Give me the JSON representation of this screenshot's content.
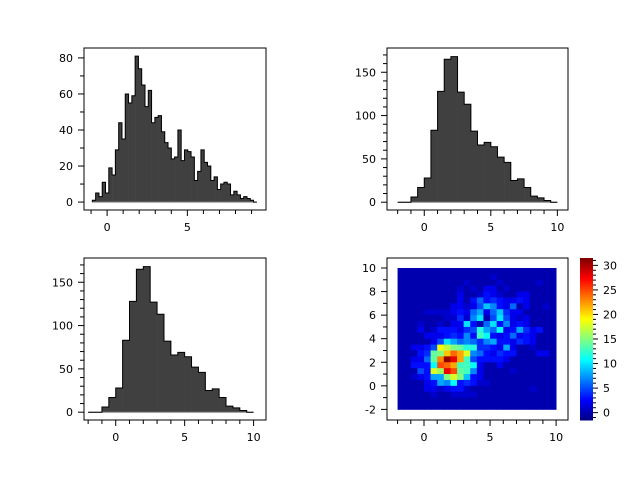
{
  "chart_data": [
    {
      "type": "bar",
      "subtype": "histogram",
      "title": "",
      "xlabel": "",
      "ylabel": "",
      "xlim": [
        -1.44,
        9.9
      ],
      "ylim": [
        -4.4,
        85.5
      ],
      "xticks": [
        0,
        5
      ],
      "xtick_labels": [
        "0",
        "5"
      ],
      "yticks": [
        0,
        20,
        40,
        60,
        80
      ],
      "ytick_labels": [
        "0",
        "20",
        "40",
        "60",
        "80"
      ],
      "bin_start": -0.92,
      "bin_width": 0.205,
      "values": [
        1,
        5,
        3,
        11,
        5,
        19,
        15,
        29,
        44,
        35,
        60,
        55,
        59,
        81,
        74,
        65,
        53,
        62,
        44,
        47,
        48,
        39,
        33,
        30,
        24,
        25,
        40,
        23,
        29,
        28,
        25,
        12,
        17,
        29,
        22,
        20,
        12,
        14,
        7,
        10,
        11,
        10,
        4,
        6,
        4,
        2,
        3,
        2,
        1,
        0
      ],
      "fill_color": "#404040",
      "grid": false
    },
    {
      "type": "bar",
      "subtype": "histogram",
      "title": "",
      "xlabel": "",
      "ylabel": "",
      "xlim": [
        -2.8,
        10.8
      ],
      "ylim": [
        -9,
        178
      ],
      "xticks": [
        0,
        5,
        10
      ],
      "xtick_labels": [
        "0",
        "5",
        "10"
      ],
      "yticks": [
        0,
        50,
        100,
        150
      ],
      "ytick_labels": [
        "0",
        "50",
        "100",
        "150"
      ],
      "bin_start": -2,
      "bin_width": 0.5,
      "values": [
        0,
        0,
        6,
        17,
        28,
        83,
        128,
        165,
        168,
        127,
        113,
        82,
        66,
        69,
        64,
        52,
        46,
        25,
        27,
        17,
        7,
        5,
        2,
        0
      ],
      "fill_color": "#404040",
      "grid": false
    },
    {
      "type": "bar",
      "subtype": "histogram",
      "title": "",
      "xlabel": "",
      "ylabel": "",
      "xlim": [
        -2.3,
        10.9
      ],
      "ylim": [
        -9,
        178
      ],
      "xticks": [
        0,
        5,
        10
      ],
      "xtick_labels": [
        "0",
        "5",
        "10"
      ],
      "yticks": [
        0,
        50,
        100,
        150
      ],
      "ytick_labels": [
        "0",
        "50",
        "100",
        "150"
      ],
      "bin_start": -2,
      "bin_width": 0.5,
      "values": [
        0,
        0,
        6,
        17,
        28,
        83,
        128,
        165,
        168,
        127,
        113,
        82,
        66,
        69,
        64,
        52,
        46,
        25,
        27,
        17,
        7,
        5,
        2,
        0
      ],
      "fill_color": "#404040",
      "grid": false
    },
    {
      "type": "heatmap",
      "title": "",
      "xlabel": "",
      "ylabel": "",
      "xlim": [
        -2.8,
        10.9
      ],
      "ylim": [
        -2.9,
        10.85
      ],
      "x_range": [
        -2,
        10
      ],
      "y_range": [
        -2,
        10
      ],
      "xticks": [
        0,
        5,
        10
      ],
      "xtick_labels": [
        "0",
        "5",
        "10"
      ],
      "yticks": [
        -2,
        0,
        2,
        4,
        6,
        8,
        10
      ],
      "ytick_labels": [
        "-2",
        "0",
        "2",
        "4",
        "6",
        "8",
        "10"
      ],
      "colormap": "jet",
      "clim": [
        -1.5,
        31.5
      ],
      "colorbar_ticks": [
        0,
        5,
        10,
        15,
        20,
        25,
        30
      ],
      "colorbar_tick_labels": [
        "0",
        "5",
        "10",
        "15",
        "20",
        "25",
        "30"
      ],
      "z_rows_top_to_bottom": [
        [
          0,
          0,
          0,
          0,
          0,
          0,
          0,
          0,
          0,
          0,
          0,
          0,
          0,
          0,
          0,
          0,
          0,
          0,
          0,
          0,
          0,
          0,
          0,
          0
        ],
        [
          0,
          0,
          0,
          0,
          0,
          0,
          0,
          0,
          0,
          0,
          0,
          0,
          0,
          0,
          1,
          0,
          0,
          0,
          0,
          0,
          0,
          0,
          0,
          0
        ],
        [
          0,
          0,
          0,
          0,
          0,
          0,
          0,
          0,
          0,
          0,
          1,
          0,
          0,
          0,
          0,
          1,
          0,
          0,
          0,
          0,
          0,
          1,
          0,
          0
        ],
        [
          0,
          0,
          0,
          0,
          0,
          0,
          0,
          0,
          0,
          1,
          0,
          1,
          0,
          2,
          2,
          0,
          1,
          0,
          0,
          0,
          0,
          0,
          0,
          0
        ],
        [
          0,
          0,
          0,
          0,
          0,
          0,
          0,
          0,
          0,
          2,
          0,
          0,
          1,
          3,
          2,
          1,
          0,
          0,
          2,
          2,
          0,
          0,
          0,
          0
        ],
        [
          0,
          0,
          0,
          0,
          0,
          0,
          0,
          0,
          0,
          2,
          0,
          3,
          6,
          3,
          4,
          3,
          2,
          2,
          3,
          2,
          0,
          0,
          0,
          0
        ],
        [
          0,
          0,
          0,
          0,
          0,
          0,
          0,
          0,
          2,
          2,
          1,
          2,
          5,
          9,
          7,
          3,
          2,
          6,
          0,
          2,
          0,
          0,
          1,
          0
        ],
        [
          0,
          0,
          0,
          0,
          1,
          1,
          1,
          1,
          2,
          3,
          2,
          6,
          8,
          2,
          6,
          9,
          4,
          2,
          2,
          0,
          0,
          0,
          0,
          0
        ],
        [
          0,
          0,
          0,
          0,
          0,
          0,
          0,
          1,
          1,
          4,
          1,
          7,
          10,
          0,
          5,
          10,
          5,
          2,
          1,
          2,
          0,
          0,
          0,
          0
        ],
        [
          0,
          0,
          0,
          1,
          0,
          0,
          1,
          0,
          2,
          2,
          10,
          3,
          0,
          6,
          10,
          3,
          7,
          2,
          3,
          2,
          0,
          0,
          0,
          0
        ],
        [
          0,
          0,
          0,
          2,
          0,
          1,
          3,
          3,
          3,
          2,
          4,
          5,
          12,
          8,
          6,
          11,
          2,
          3,
          8,
          4,
          2,
          3,
          0,
          0
        ],
        [
          0,
          0,
          0,
          0,
          2,
          2,
          2,
          3,
          4,
          3,
          7,
          3,
          13,
          11,
          3,
          2,
          3,
          6,
          2,
          3,
          2,
          0,
          0,
          0
        ],
        [
          0,
          0,
          0,
          0,
          0,
          2,
          5,
          10,
          8,
          6,
          7,
          6,
          4,
          7,
          8,
          3,
          3,
          2,
          4,
          3,
          2,
          0,
          0,
          0
        ],
        [
          0,
          0,
          2,
          2,
          3,
          5,
          19,
          17,
          15,
          14,
          12,
          12,
          4,
          4,
          3,
          2,
          8,
          2,
          0,
          0,
          1,
          0,
          0,
          0
        ],
        [
          0,
          0,
          0,
          3,
          4,
          14,
          15,
          21,
          24,
          22,
          18,
          7,
          6,
          3,
          2,
          4,
          3,
          3,
          0,
          0,
          0,
          2,
          2,
          0
        ],
        [
          0,
          0,
          2,
          2,
          6,
          14,
          23,
          31,
          28,
          22,
          13,
          5,
          3,
          3,
          3,
          3,
          2,
          0,
          0,
          0,
          0,
          0,
          0,
          0
        ],
        [
          0,
          0,
          3,
          3,
          3,
          11,
          25,
          24,
          22,
          13,
          13,
          11,
          2,
          0,
          0,
          2,
          0,
          0,
          0,
          0,
          0,
          0,
          0,
          0
        ],
        [
          0,
          0,
          0,
          5,
          3,
          18,
          16,
          28,
          25,
          14,
          13,
          7,
          2,
          0,
          0,
          0,
          0,
          1,
          0,
          0,
          0,
          0,
          0,
          0
        ],
        [
          0,
          0,
          1,
          2,
          3,
          8,
          8,
          15,
          18,
          15,
          9,
          3,
          2,
          0,
          0,
          0,
          0,
          0,
          0,
          0,
          0,
          0,
          0,
          0
        ],
        [
          0,
          0,
          0,
          0,
          2,
          3,
          8,
          7,
          11,
          3,
          4,
          3,
          1,
          1,
          0,
          0,
          0,
          0,
          0,
          0,
          0,
          0,
          0,
          0
        ],
        [
          0,
          0,
          0,
          0,
          2,
          2,
          1,
          2,
          3,
          3,
          1,
          0,
          0,
          0,
          0,
          0,
          0,
          0,
          0,
          0,
          1,
          0,
          0,
          0
        ],
        [
          0,
          0,
          0,
          0,
          0,
          1,
          0,
          0,
          1,
          1,
          1,
          1,
          0,
          0,
          0,
          0,
          0,
          0,
          0,
          0,
          0,
          0,
          0,
          0
        ],
        [
          0,
          0,
          0,
          0,
          0,
          0,
          0,
          0,
          0,
          0,
          0,
          0,
          0,
          0,
          0,
          0,
          0,
          0,
          0,
          0,
          0,
          0,
          0,
          0
        ],
        [
          0,
          0,
          0,
          0,
          0,
          0,
          0,
          0,
          0,
          0,
          0,
          0,
          0,
          0,
          0,
          0,
          0,
          0,
          0,
          0,
          0,
          0,
          0,
          0
        ]
      ],
      "grid": false
    }
  ]
}
